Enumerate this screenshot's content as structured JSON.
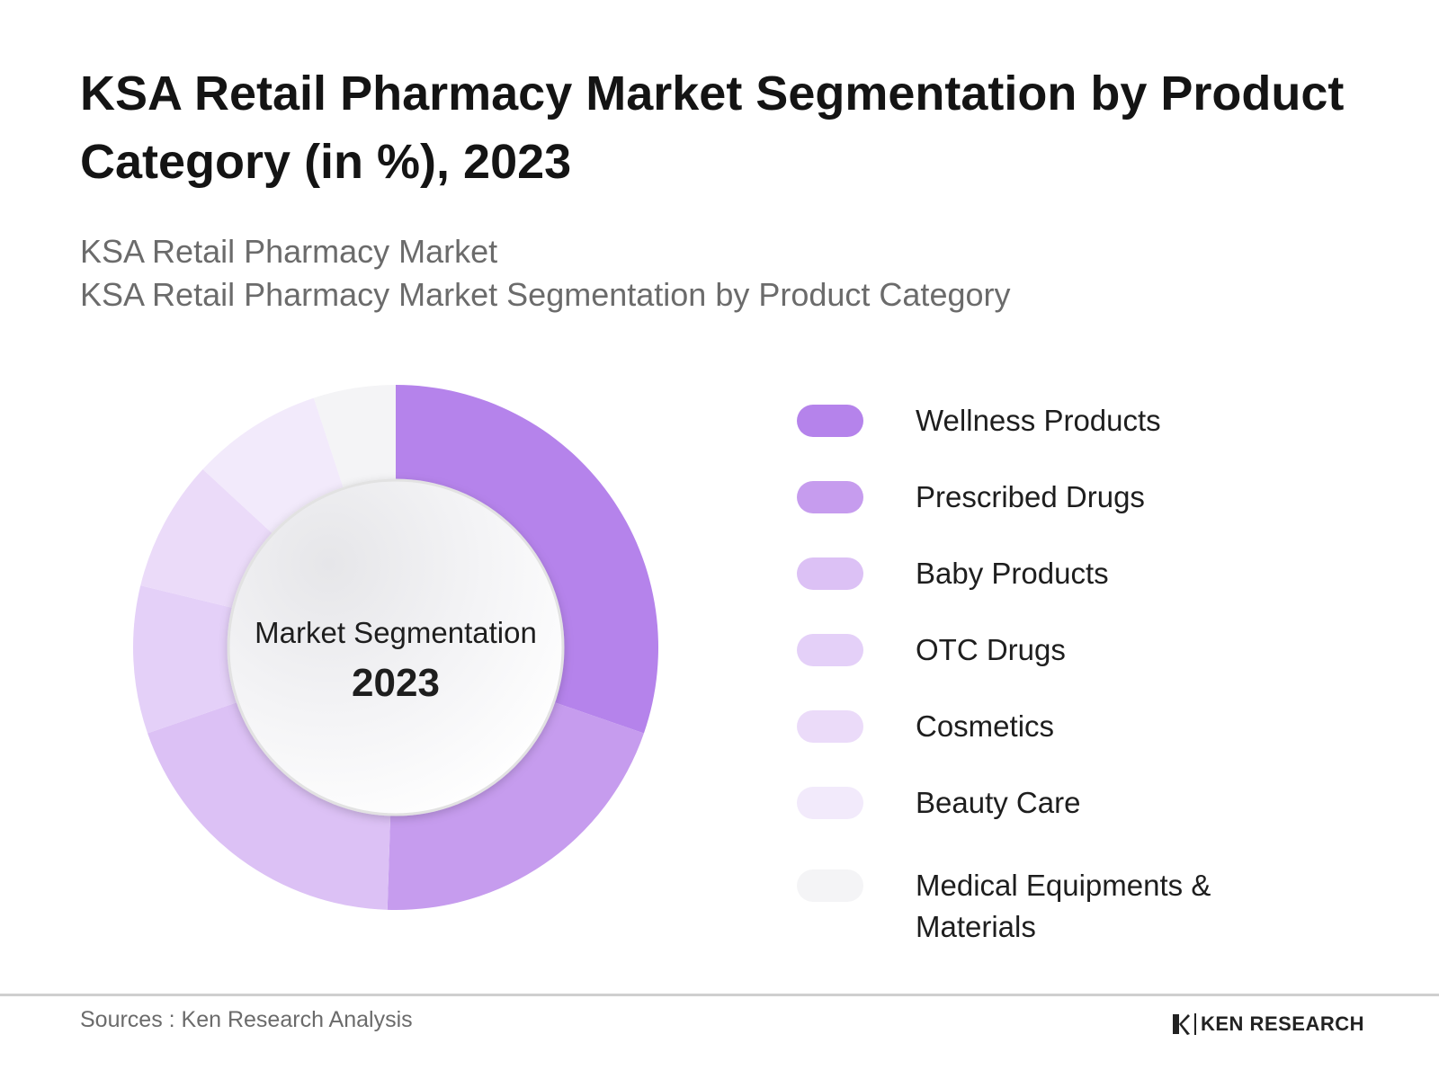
{
  "header": {
    "title": "KSA Retail Pharmacy Market Segmentation by Product Category (in %), 2023",
    "subtitle_line1": "KSA Retail Pharmacy Market",
    "subtitle_line2": "KSA Retail Pharmacy Market Segmentation by Product Category"
  },
  "chart_data": {
    "type": "pie",
    "variant": "donut",
    "center_label": "Market Segmentation",
    "center_value": "2023",
    "categories": [
      "Wellness Products",
      "Prescribed Drugs",
      "Baby Products",
      "OTC Drugs",
      "Cosmetics",
      "Beauty Care",
      "Medical Equipments & Materials"
    ],
    "values": [
      30,
      20,
      19,
      9,
      8,
      8,
      5
    ],
    "colors": [
      "#b583eb",
      "#c69cee",
      "#dcc1f5",
      "#e4d0f8",
      "#ebdbf9",
      "#f2eafb",
      "#f4f4f6"
    ],
    "start_angle_deg": 0,
    "direction": "clockwise",
    "legend_position": "right"
  },
  "footer": {
    "source": "Sources : Ken Research Analysis",
    "logo_text": "KEN RESEARCH"
  }
}
